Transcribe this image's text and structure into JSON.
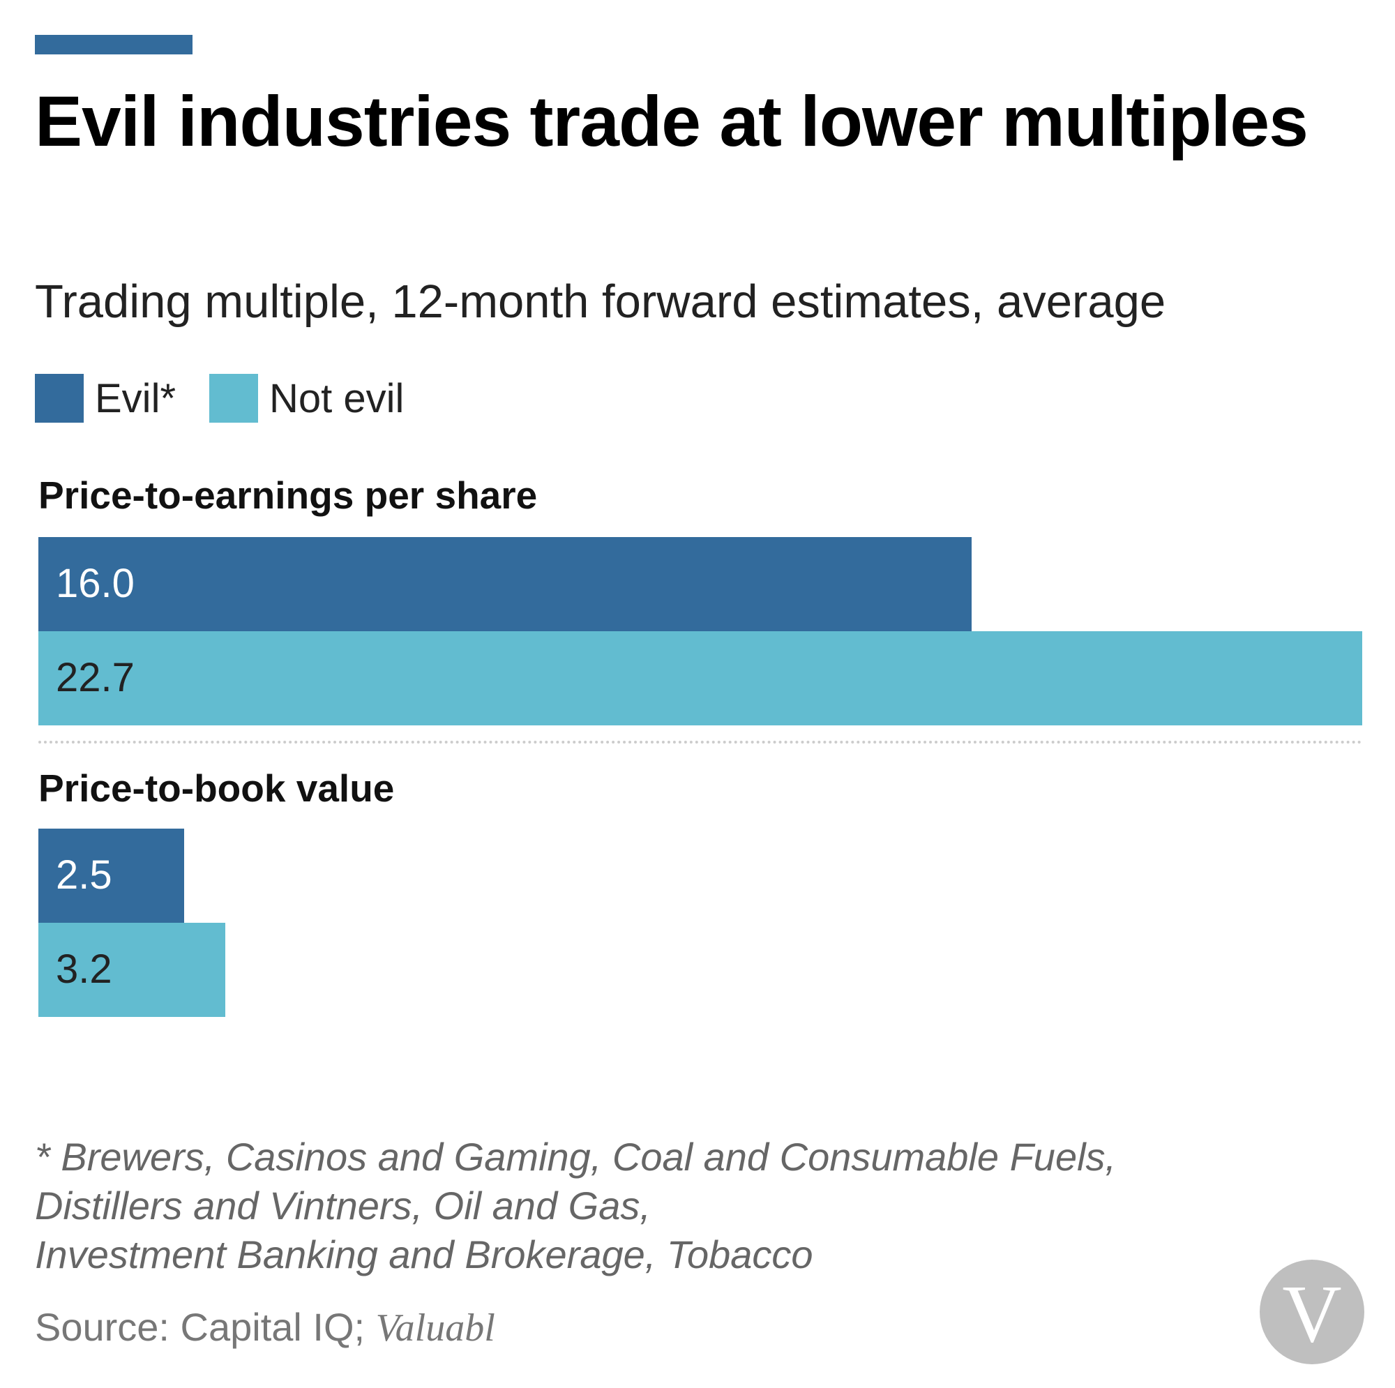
{
  "chart_data": {
    "type": "bar",
    "orientation": "horizontal",
    "title": "Evil industries trade at lower multiples",
    "subtitle": "Trading multiple, 12-month forward estimates, average",
    "categories": [
      "Price-to-earnings per share",
      "Price-to-book value"
    ],
    "series": [
      {
        "name": "Evil*",
        "color": "#336b9c",
        "values": [
          16.0,
          2.5
        ],
        "labels": [
          "16.0",
          "2.5"
        ],
        "label_color": "#ffffff"
      },
      {
        "name": "Not evil",
        "color": "#62bcd0",
        "values": [
          22.7,
          3.2
        ],
        "labels": [
          "22.7",
          "3.2"
        ],
        "label_color": "#222222"
      }
    ],
    "xlim": [
      0,
      22.7
    ],
    "legend_position": "top-left",
    "grid": false,
    "footnote_lines": [
      "* Brewers, Casinos and Gaming, Coal and Consumable Fuels,",
      "Distillers and Vintners, Oil and Gas,",
      "Investment Banking and Brokerage, Tobacco"
    ],
    "source_prefix": "Source: Capital IQ; ",
    "source_brand": "Valuabl"
  },
  "colors": {
    "accent": "#336b9c",
    "separator": "#cccccc",
    "logo": "#bfbfbf"
  },
  "logo": {
    "letter": "V",
    "icon": "valuabl-logo-icon"
  }
}
